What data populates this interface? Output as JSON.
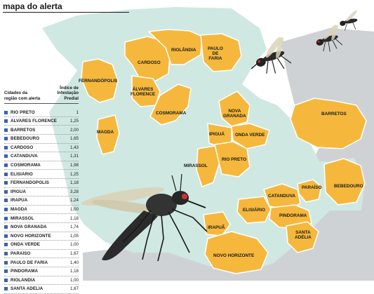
{
  "title": "mapa do alerta",
  "legend": {
    "column_city": "Cidades da região com alerta",
    "column_index": "Índice de Infestação Predial",
    "rows": [
      {
        "city": "RIO PRETO",
        "value": "1"
      },
      {
        "city": "ÁLVARES FLORENCE",
        "value": "1,25"
      },
      {
        "city": "BARRETOS",
        "value": "2,00"
      },
      {
        "city": "BEBEDOURO",
        "value": "1,65"
      },
      {
        "city": "CARDOSO",
        "value": "1,43"
      },
      {
        "city": "CATANDUVA",
        "value": "1,31"
      },
      {
        "city": "COSMORAMA",
        "value": "1,98"
      },
      {
        "city": "ELISIÁRIO",
        "value": "1,25"
      },
      {
        "city": "FERNANDÓPOLIS",
        "value": "1,18"
      },
      {
        "city": "IPIGUÁ",
        "value": "3,28"
      },
      {
        "city": "IRAPUÃ",
        "value": "1,24"
      },
      {
        "city": "MAGDA",
        "value": "1,00"
      },
      {
        "city": "MIRASSOL",
        "value": "1,18"
      },
      {
        "city": "NOVA GRANADA",
        "value": "1,74"
      },
      {
        "city": "NOVO HORIZONTE",
        "value": "1,05"
      },
      {
        "city": "ONDA VERDE",
        "value": "1,00"
      },
      {
        "city": "PARAÍSO",
        "value": "1,67"
      },
      {
        "city": "PAULO DE FARIA",
        "value": "1,40"
      },
      {
        "city": "PINDORAMA",
        "value": "1,18"
      },
      {
        "city": "RIOLÂNDIA",
        "value": "1,00"
      },
      {
        "city": "SANTA ADÉLIA",
        "value": "1,67"
      }
    ]
  },
  "map_labels": {
    "cardoso": "CARDOSO",
    "riolandia": "RIOLÂNDIA",
    "paulo_de_faria_1": "PAULO",
    "paulo_de_faria_2": "DE",
    "paulo_de_faria_3": "FARIA",
    "fernandopolis": "FERNANDÓPOLIS",
    "alvares_florence_1": "ÁLVARES",
    "alvares_florence_2": "FLORENCE",
    "cosmorama": "COSMORAMA",
    "magda": "MAGDA",
    "nova_granada_1": "NOVA",
    "nova_granada_2": "GRANADA",
    "ipigua": "IPIGUÁ",
    "onda_verde": "ONDA VERDE",
    "mirassol": "MIRASSOL",
    "rio_preto": "RIO PRETO",
    "barretos": "BARRETOS",
    "bebedouro": "BEBEDOURO",
    "paraiso": "PARAÍSO",
    "catanduva": "CATANDUVA",
    "elisiario": "ELISIÁRIO",
    "pindorama": "PINDORAMA",
    "santa_adelia_1": "SANTA",
    "santa_adelia_2": "ADÉLIA",
    "irapua": "IRAPUÃ",
    "novo_horizonte": "NOVO HORIZONTE"
  },
  "colors": {
    "region_fill": "#cfe8e2",
    "alert_city": "#f5b83d",
    "neighbor_state": "#cfd2d4",
    "legend_square": "#3a63a8"
  },
  "icons": [
    "mosquito-icon"
  ]
}
